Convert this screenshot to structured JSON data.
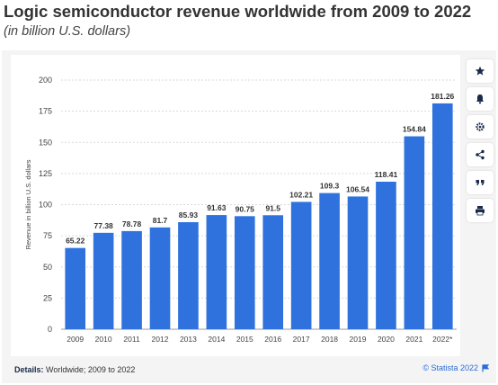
{
  "title": "Logic semiconductor revenue worldwide from 2009 to 2022",
  "subtitle": "(in billion U.S. dollars)",
  "toolbar": [
    "star-icon",
    "bell-icon",
    "gear-icon",
    "share-icon",
    "quote-icon",
    "print-icon"
  ],
  "details": {
    "label": "Details:",
    "text": "Worldwide; 2009 to 2022"
  },
  "credit": "© Statista 2022",
  "colors": {
    "bar": "#2f72de",
    "grid": "#d9d9d9",
    "text": "#333333"
  },
  "chart_data": {
    "type": "bar",
    "categories": [
      "2009",
      "2010",
      "2011",
      "2012",
      "2013",
      "2014",
      "2015",
      "2016",
      "2017",
      "2018",
      "2019",
      "2020",
      "2021",
      "2022*"
    ],
    "values": [
      65.22,
      77.38,
      78.78,
      81.7,
      85.93,
      91.63,
      90.75,
      91.5,
      102.21,
      109.3,
      106.54,
      118.41,
      154.84,
      181.26
    ],
    "value_labels": [
      "65.22",
      "77.38",
      "78.78",
      "81.7",
      "85.93",
      "91.63",
      "90.75",
      "91.5",
      "102.21",
      "109.3",
      "106.54",
      "118.41",
      "154.84",
      "181.26"
    ],
    "ylabel": "Revenue in billion U.S. dollars",
    "ylim": [
      0,
      200
    ],
    "yticks": [
      0,
      25,
      50,
      75,
      100,
      125,
      150,
      175,
      200
    ],
    "grid": true
  }
}
